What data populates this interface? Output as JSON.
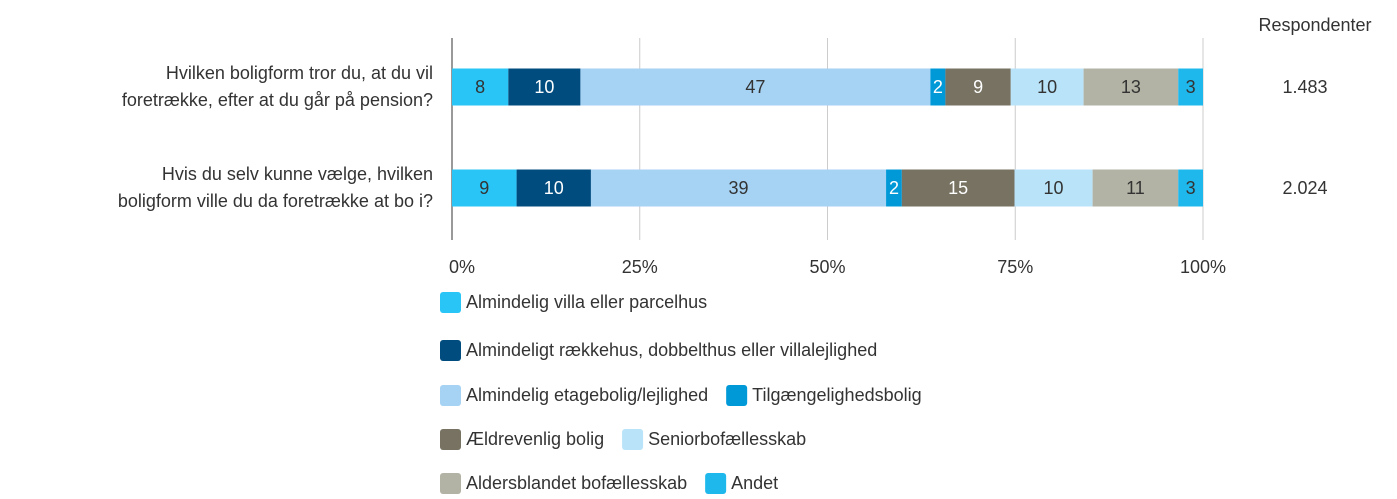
{
  "chart_data": {
    "type": "stacked_bar_horizontal",
    "categories": [
      [
        "Hvilken boligform tror du, at du vil",
        "foretrække, efter at du går på pension?"
      ],
      [
        "Hvis du selv kunne vælge, hvilken",
        "boligform ville du da foretrække at bo i?"
      ]
    ],
    "series": [
      {
        "name": "Almindelig villa eller parcelhus",
        "color": "#29c5f6",
        "values": [
          7.5,
          8.6
        ],
        "value_labels": [
          "8",
          "9"
        ]
      },
      {
        "name": "Almindeligt rækkehus, dobbelthus eller villalejlighed",
        "color": "#004c7f",
        "values": [
          9.6,
          9.9
        ],
        "value_labels": [
          "10",
          "10"
        ]
      },
      {
        "name": "Almindelig etagebolig/lejlighed",
        "color": "#a6d2f4",
        "values": [
          46.6,
          39.3
        ],
        "value_labels": [
          "47",
          "39"
        ]
      },
      {
        "name": "Tilgængelighedsbolig",
        "color": "#0099d8",
        "values": [
          2.0,
          2.1
        ],
        "value_labels": [
          "2",
          "2"
        ]
      },
      {
        "name": "Ældrevenlig bolig",
        "color": "#777262",
        "values": [
          8.7,
          15.0
        ],
        "value_labels": [
          "9",
          "15"
        ]
      },
      {
        "name": "Seniorbofællesskab",
        "color": "#b9e3f8",
        "values": [
          9.7,
          10.4
        ],
        "value_labels": [
          "10",
          "10"
        ]
      },
      {
        "name": "Aldersblandet bofællesskab",
        "color": "#b2b3a4",
        "values": [
          12.6,
          11.4
        ],
        "value_labels": [
          "13",
          "11"
        ]
      },
      {
        "name": "Andet",
        "color": "#1fb8ec",
        "values": [
          3.3,
          3.3
        ],
        "value_labels": [
          "3",
          "3"
        ]
      }
    ],
    "xlim": [
      0,
      100
    ],
    "xticks": [
      {
        "value": 0,
        "label": "0%"
      },
      {
        "value": 25,
        "label": "25%"
      },
      {
        "value": 50,
        "label": "50%"
      },
      {
        "value": 75,
        "label": "75%"
      },
      {
        "value": 100,
        "label": "100%"
      }
    ],
    "grid": true,
    "respondents_title": "Respondenter",
    "respondents": [
      {
        "value": 1483,
        "label": "1.483"
      },
      {
        "value": 2024,
        "label": "2.024"
      }
    ]
  }
}
